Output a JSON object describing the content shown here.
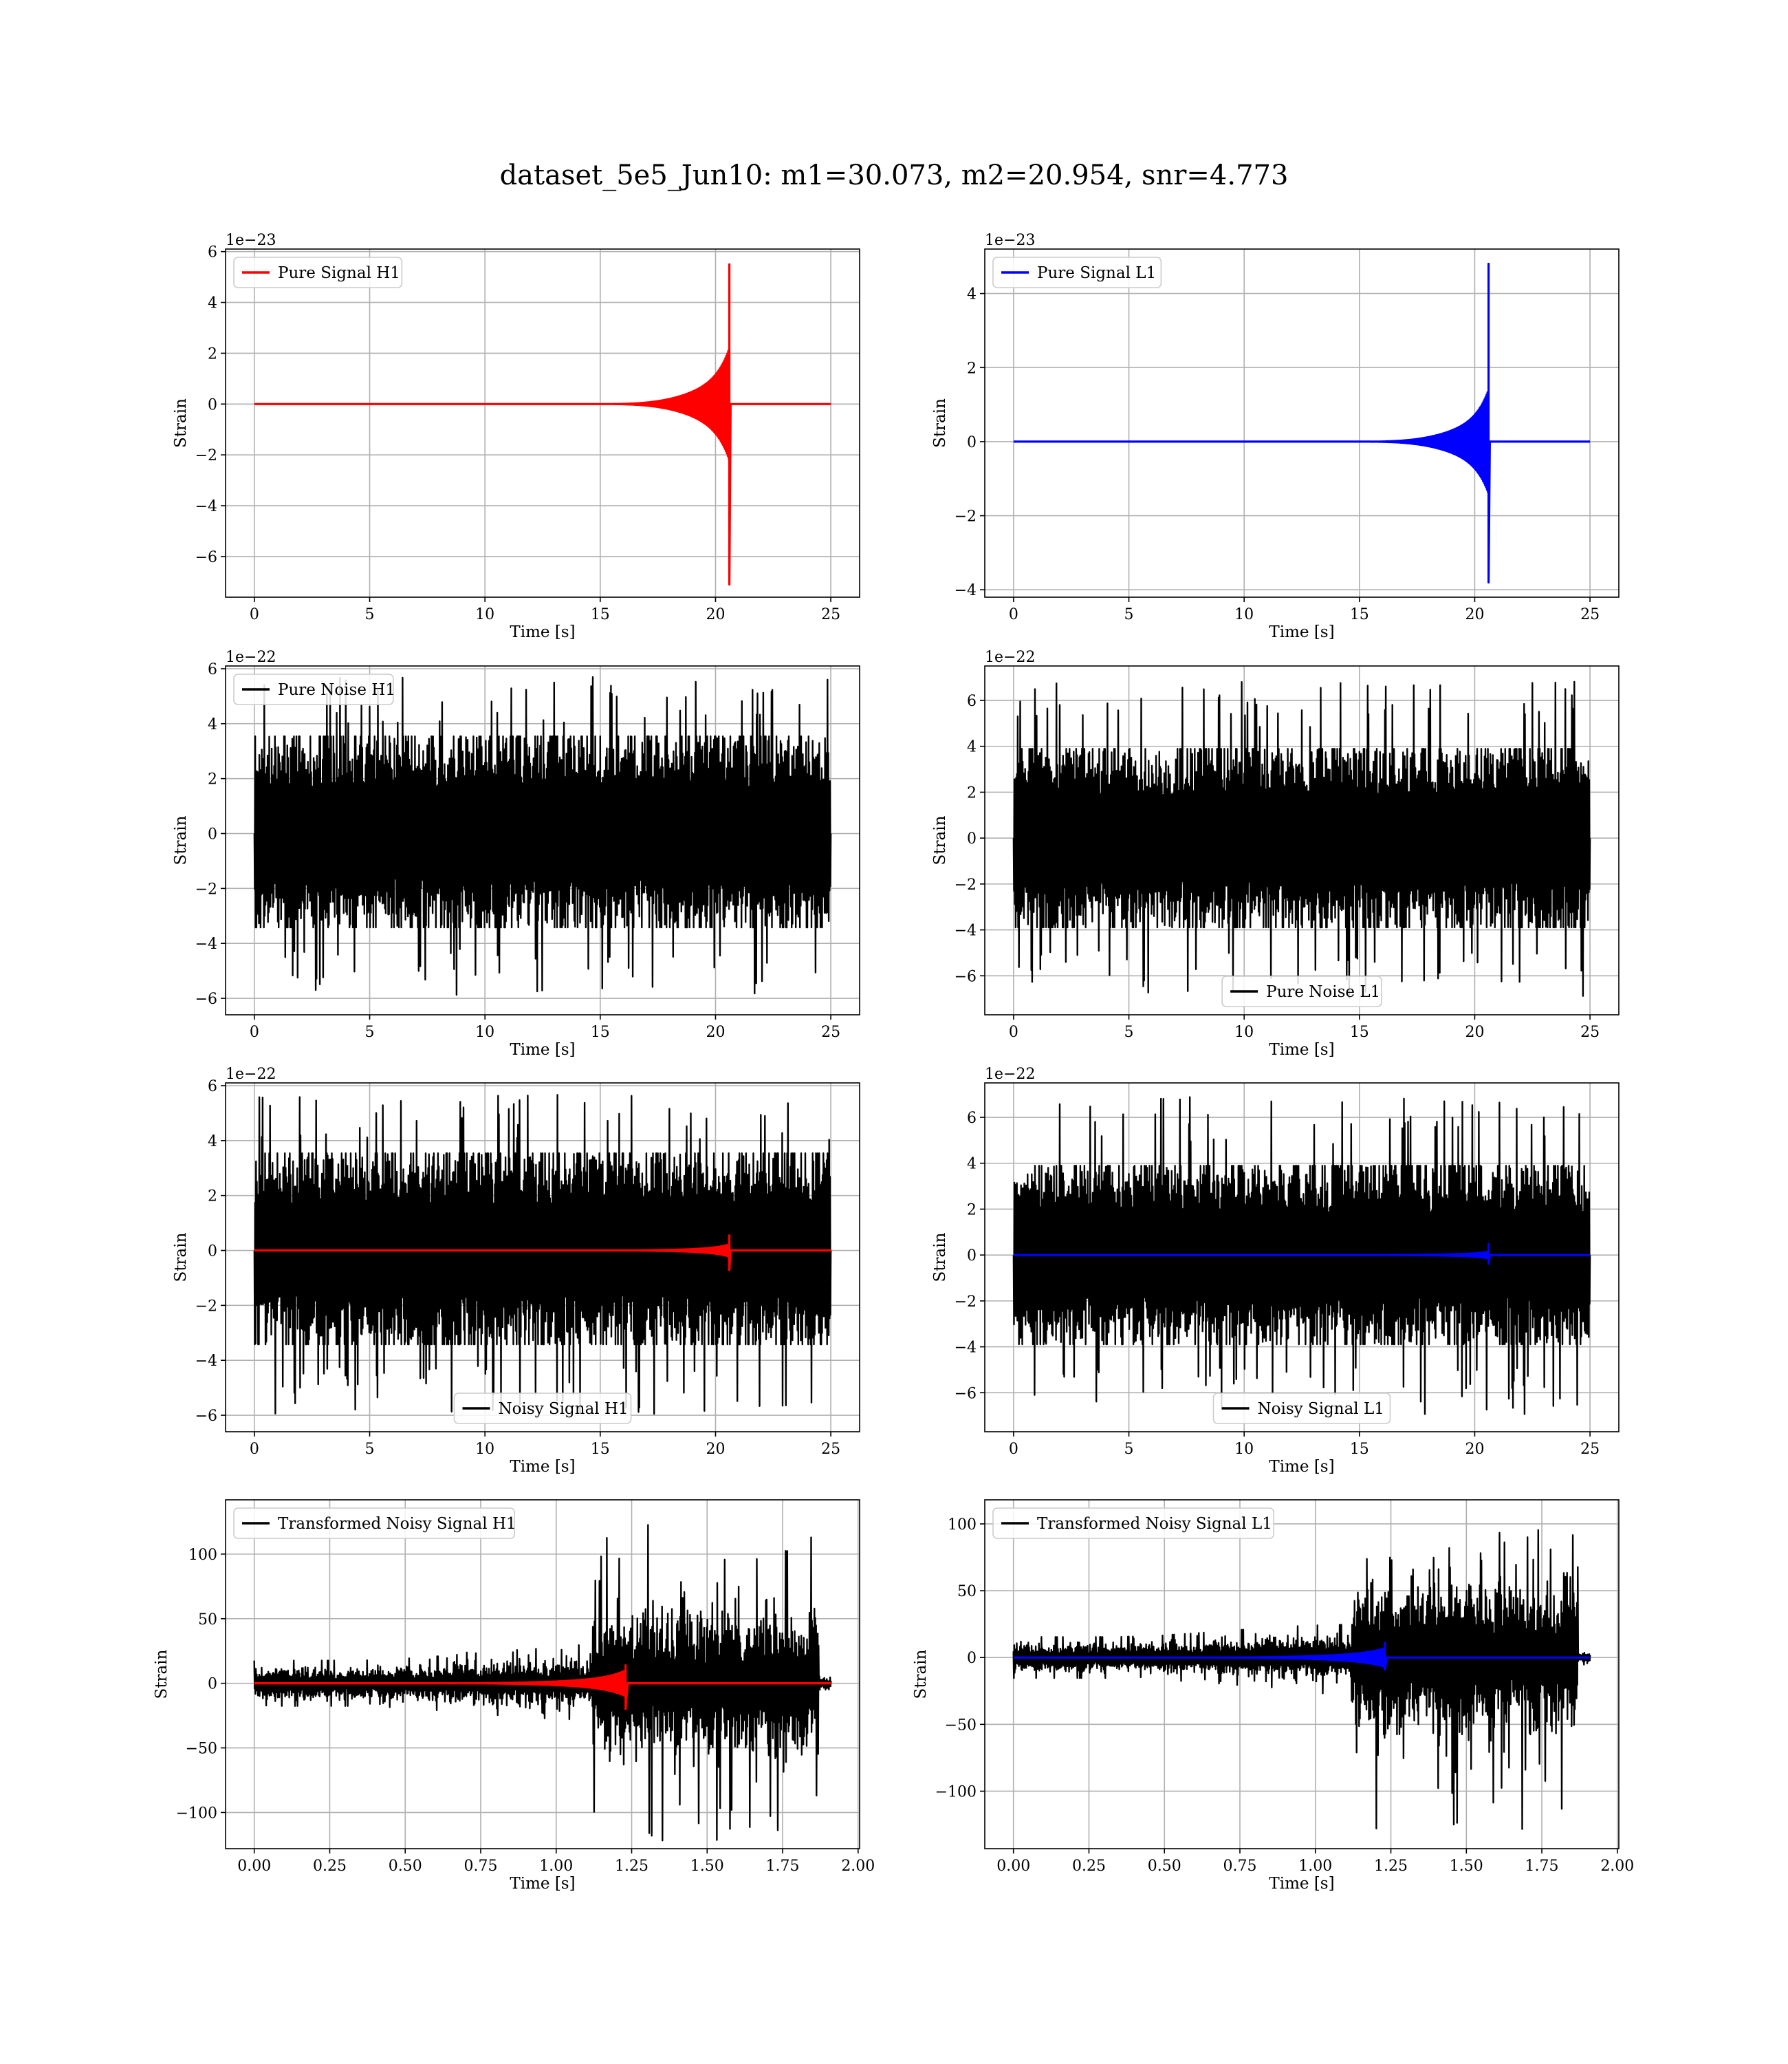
{
  "figure": {
    "title": "dataset_5e5_Jun10: m1=30.073, m2=20.954, snr=4.773"
  },
  "chart_data": [
    {
      "id": "pure-signal-h1",
      "type": "line",
      "xlabel": "Time [s]",
      "ylabel": "Strain",
      "offset_text": "1e−23",
      "xlim": [
        -1.25,
        26.25
      ],
      "ylim": [
        -7.6,
        6.1
      ],
      "x_ticks": [
        0,
        5,
        10,
        15,
        20,
        25
      ],
      "y_ticks": [
        -6,
        -4,
        -2,
        0,
        2,
        4,
        6
      ],
      "grid": true,
      "legend": {
        "position": "upper-left"
      },
      "series": [
        {
          "name": "Pure Signal H1",
          "color": "#ff0000",
          "kind": "chirp",
          "x_start": 0,
          "x_end": 25,
          "onset": 15.0,
          "merger": 20.6,
          "envelope_at_19": 1.3,
          "envelope_at_20_3": 2.2,
          "peak_max": 5.5,
          "peak_min": -7.1
        }
      ]
    },
    {
      "id": "pure-signal-l1",
      "type": "line",
      "xlabel": "Time [s]",
      "ylabel": "Strain",
      "offset_text": "1e−23",
      "xlim": [
        -1.25,
        26.25
      ],
      "ylim": [
        -4.2,
        5.2
      ],
      "x_ticks": [
        0,
        5,
        10,
        15,
        20,
        25
      ],
      "y_ticks": [
        -4,
        -2,
        0,
        2,
        4
      ],
      "grid": true,
      "legend": {
        "position": "upper-left"
      },
      "series": [
        {
          "name": "Pure Signal L1",
          "color": "#0000ff",
          "kind": "chirp",
          "x_start": 0,
          "x_end": 25,
          "onset": 15.0,
          "merger": 20.6,
          "envelope_at_19": 0.8,
          "envelope_at_20_3": 1.4,
          "peak_max": 4.8,
          "peak_min": -3.8
        }
      ]
    },
    {
      "id": "pure-noise-h1",
      "type": "line",
      "xlabel": "Time [s]",
      "ylabel": "Strain",
      "offset_text": "1e−22",
      "xlim": [
        -1.25,
        26.25
      ],
      "ylim": [
        -6.6,
        6.1
      ],
      "x_ticks": [
        0,
        5,
        10,
        15,
        20,
        25
      ],
      "y_ticks": [
        -6,
        -4,
        -2,
        0,
        2,
        4,
        6
      ],
      "grid": true,
      "legend": {
        "position": "upper-left"
      },
      "series": [
        {
          "name": "Pure Noise H1",
          "color": "#000000",
          "kind": "noise",
          "x_start": 0,
          "x_end": 25,
          "band_low": -2.9,
          "band_high": 3.0,
          "spike_max": 5.7,
          "spike_min": -6.0
        }
      ]
    },
    {
      "id": "pure-noise-l1",
      "type": "line",
      "xlabel": "Time [s]",
      "ylabel": "Strain",
      "offset_text": "1e−22",
      "xlim": [
        -1.25,
        26.25
      ],
      "ylim": [
        -7.7,
        7.5
      ],
      "x_ticks": [
        0,
        5,
        10,
        15,
        20,
        25
      ],
      "y_ticks": [
        -6,
        -4,
        -2,
        0,
        2,
        4,
        6
      ],
      "grid": true,
      "legend": {
        "position": "lower-center"
      },
      "series": [
        {
          "name": "Pure Noise L1",
          "color": "#000000",
          "kind": "noise",
          "x_start": 0,
          "x_end": 25,
          "band_low": -3.3,
          "band_high": 3.3,
          "spike_max": 6.9,
          "spike_min": -7.0
        }
      ]
    },
    {
      "id": "noisy-signal-h1",
      "type": "line",
      "xlabel": "Time [s]",
      "ylabel": "Strain",
      "offset_text": "1e−22",
      "xlim": [
        -1.25,
        26.25
      ],
      "ylim": [
        -6.6,
        6.1
      ],
      "x_ticks": [
        0,
        5,
        10,
        15,
        20,
        25
      ],
      "y_ticks": [
        -6,
        -4,
        -2,
        0,
        2,
        4,
        6
      ],
      "grid": true,
      "legend": {
        "position": "lower-center"
      },
      "series": [
        {
          "name": "Noisy Signal H1",
          "color": "#000000",
          "kind": "noise",
          "x_start": 0,
          "x_end": 25,
          "band_low": -2.9,
          "band_high": 3.0,
          "spike_max": 5.7,
          "spike_min": -6.0
        },
        {
          "color": "#ff0000",
          "kind": "chirp",
          "x_start": 0,
          "x_end": 25,
          "onset": 15.0,
          "merger": 20.6,
          "envelope_at_19": 0.13,
          "envelope_at_20_3": 0.22,
          "peak_max": 0.55,
          "peak_min": -0.71
        }
      ]
    },
    {
      "id": "noisy-signal-l1",
      "type": "line",
      "xlabel": "Time [s]",
      "ylabel": "Strain",
      "offset_text": "1e−22",
      "xlim": [
        -1.25,
        26.25
      ],
      "ylim": [
        -7.7,
        7.5
      ],
      "x_ticks": [
        0,
        5,
        10,
        15,
        20,
        25
      ],
      "y_ticks": [
        -6,
        -4,
        -2,
        0,
        2,
        4,
        6
      ],
      "grid": true,
      "legend": {
        "position": "lower-center"
      },
      "series": [
        {
          "name": "Noisy Signal L1",
          "color": "#000000",
          "kind": "noise",
          "x_start": 0,
          "x_end": 25,
          "band_low": -3.3,
          "band_high": 3.3,
          "spike_max": 6.9,
          "spike_min": -7.0
        },
        {
          "color": "#0000ff",
          "kind": "chirp",
          "x_start": 0,
          "x_end": 25,
          "onset": 15.0,
          "merger": 20.6,
          "envelope_at_19": 0.08,
          "envelope_at_20_3": 0.14,
          "peak_max": 0.48,
          "peak_min": -0.38
        }
      ]
    },
    {
      "id": "transformed-noisy-signal-h1",
      "type": "line",
      "xlabel": "Time [s]",
      "ylabel": "Strain",
      "offset_text": "",
      "xlim": [
        -0.095,
        2.005
      ],
      "ylim": [
        -128,
        142
      ],
      "x_ticks": [
        0.0,
        0.25,
        0.5,
        0.75,
        1.0,
        1.25,
        1.5,
        1.75,
        2.0
      ],
      "x_tick_labels": [
        "0.00",
        "0.25",
        "0.50",
        "0.75",
        "1.00",
        "1.25",
        "1.50",
        "1.75",
        "2.00"
      ],
      "y_ticks": [
        -100,
        -50,
        0,
        50,
        100
      ],
      "grid": true,
      "legend": {
        "position": "upper-left"
      },
      "series": [
        {
          "name": "Transformed Noisy Signal H1",
          "color": "#000000",
          "kind": "transformed-noise",
          "x_start": 0.0,
          "x_end": 1.91,
          "step_time": 1.12,
          "end_time": 1.87,
          "band_before": 8,
          "band_after": 38,
          "spike_max": 130,
          "spike_min": -127
        },
        {
          "color": "#ff0000",
          "kind": "chirp",
          "x_start": 0.0,
          "x_end": 1.91,
          "onset": 0.55,
          "merger": 1.23,
          "envelope_at_19": 5,
          "envelope_at_20_3": 10,
          "peak_max": 14,
          "peak_min": -20
        }
      ]
    },
    {
      "id": "transformed-noisy-signal-l1",
      "type": "line",
      "xlabel": "Time [s]",
      "ylabel": "Strain",
      "offset_text": "",
      "xlim": [
        -0.095,
        2.005
      ],
      "ylim": [
        -143,
        118
      ],
      "x_ticks": [
        0.0,
        0.25,
        0.5,
        0.75,
        1.0,
        1.25,
        1.5,
        1.75,
        2.0
      ],
      "x_tick_labels": [
        "0.00",
        "0.25",
        "0.50",
        "0.75",
        "1.00",
        "1.25",
        "1.50",
        "1.75",
        "2.00"
      ],
      "y_ticks": [
        -100,
        -50,
        0,
        50,
        100
      ],
      "grid": true,
      "legend": {
        "position": "upper-left"
      },
      "series": [
        {
          "name": "Transformed Noisy Signal L1",
          "color": "#000000",
          "kind": "transformed-noise",
          "x_start": 0.0,
          "x_end": 1.91,
          "step_time": 1.12,
          "end_time": 1.87,
          "band_before": 7,
          "band_after": 40,
          "spike_max": 100,
          "spike_min": -132
        },
        {
          "color": "#0000ff",
          "kind": "chirp",
          "x_start": 0.0,
          "x_end": 1.91,
          "onset": 0.55,
          "merger": 1.23,
          "envelope_at_19": 4,
          "envelope_at_20_3": 7,
          "peak_max": 11,
          "peak_min": -9
        }
      ]
    }
  ]
}
